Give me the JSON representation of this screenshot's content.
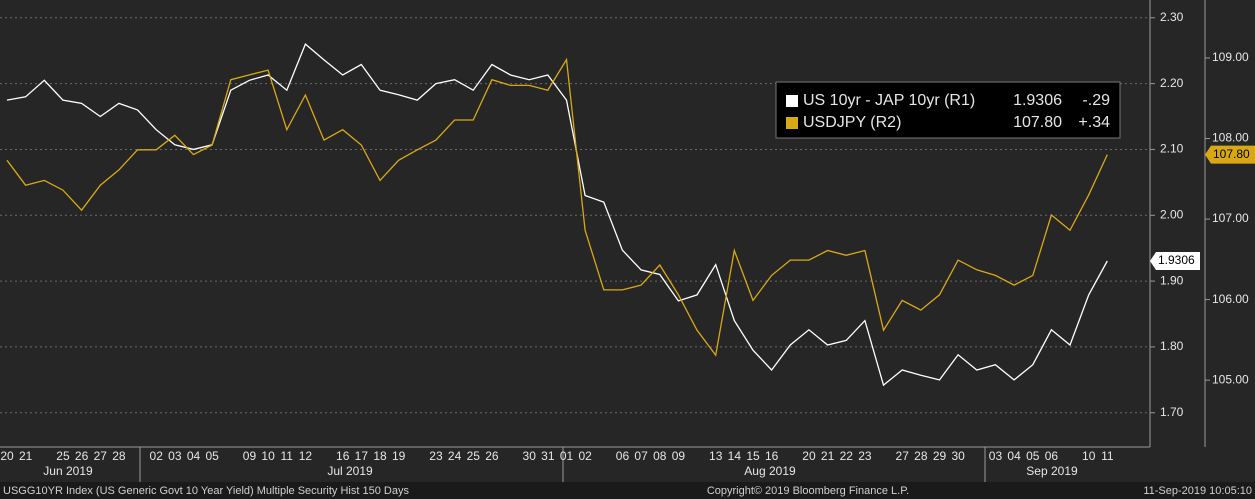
{
  "chart_data": {
    "type": "line",
    "categories": [
      "20",
      "21",
      null,
      "25",
      "26",
      "27",
      "28",
      null,
      "02",
      "03",
      "04",
      "05",
      null,
      "09",
      "10",
      "11",
      "12",
      null,
      "16",
      "17",
      "18",
      "19",
      null,
      "23",
      "24",
      "25",
      "26",
      null,
      "30",
      "31",
      "01",
      "02",
      null,
      "06",
      "07",
      "08",
      "09",
      null,
      "13",
      "14",
      "15",
      "16",
      null,
      "20",
      "21",
      "22",
      "23",
      null,
      "27",
      "28",
      "29",
      "30",
      null,
      "03",
      "04",
      "05",
      "06",
      null,
      "10",
      "11"
    ],
    "months": [
      "Jun 2019",
      "Jul 2019",
      "Aug 2019",
      "Sep 2019"
    ],
    "ylim": [
      1.648,
      2.327
    ],
    "yticks": [
      {
        "value": 1.7,
        "label": "1.70"
      },
      {
        "value": 1.8,
        "label": "1.80"
      },
      {
        "value": 1.9,
        "label": "1.90"
      },
      {
        "value": 2.0,
        "label": "2.00"
      },
      {
        "value": 2.1,
        "label": "2.10"
      },
      {
        "value": 2.2,
        "label": "2.20"
      },
      {
        "value": 2.3,
        "label": "2.30"
      }
    ],
    "y2lim": [
      104.17,
      109.72
    ],
    "y2ticks": [
      {
        "value": 105,
        "label": "105.00"
      },
      {
        "value": 106,
        "label": "106.00"
      },
      {
        "value": 107,
        "label": "107.00"
      },
      {
        "value": 108,
        "label": "108.00"
      },
      {
        "value": 109,
        "label": "109.00"
      }
    ],
    "grid": true,
    "series": [
      {
        "name": "US 10yr - JAP 10yr (R1)",
        "color": "#ffffff",
        "last": 1.9306,
        "change": {
          "value": -0.29,
          "label": "-.29"
        },
        "values": [
          2.175,
          2.18,
          2.205,
          2.175,
          2.17,
          2.15,
          2.17,
          2.16,
          2.13,
          2.107,
          2.1,
          2.107,
          2.19,
          2.205,
          2.213,
          2.19,
          2.26,
          2.236,
          2.213,
          2.229,
          2.19,
          2.183,
          2.175,
          2.2,
          2.206,
          2.19,
          2.229,
          2.213,
          2.206,
          2.213,
          2.175,
          2.03,
          2.02,
          1.947,
          1.917,
          1.91,
          1.87,
          1.879,
          1.925,
          1.84,
          1.795,
          1.765,
          1.803,
          1.826,
          1.803,
          1.81,
          1.84,
          1.742,
          1.765,
          1.757,
          1.75,
          1.788,
          1.765,
          1.773,
          1.75,
          1.773,
          1.826,
          1.803,
          1.879,
          1.9306
        ]
      },
      {
        "name": "USDJPY (R2)",
        "color": "#d9a915",
        "axis": "y2",
        "last": {
          "value": 107.8,
          "label": "107.80"
        },
        "change": {
          "value": 0.34,
          "label": "+.34"
        },
        "values": [
          107.73,
          107.42,
          107.48,
          107.36,
          107.11,
          107.42,
          107.61,
          107.86,
          107.86,
          108.04,
          107.8,
          107.92,
          108.73,
          108.79,
          108.85,
          108.11,
          108.54,
          107.98,
          108.11,
          107.92,
          107.48,
          107.73,
          107.86,
          107.98,
          108.23,
          108.23,
          108.73,
          108.66,
          108.66,
          108.6,
          108.98,
          106.86,
          106.12,
          106.12,
          106.18,
          106.43,
          106.06,
          105.62,
          105.31,
          106.61,
          105.99,
          106.3,
          106.49,
          106.49,
          106.61,
          106.55,
          106.61,
          105.62,
          105.99,
          105.87,
          106.06,
          106.49,
          106.37,
          106.3,
          106.18,
          106.3,
          107.05,
          106.86,
          107.3,
          107.8
        ]
      }
    ],
    "footer": {
      "left": "USGG10YR Index (US Generic Govt 10 Year Yield) Multiple Security Hist  150 Days",
      "center": "Copyright© 2019 Bloomberg Finance L.P.",
      "right": "11-Sep-2019 10:05:10"
    }
  }
}
